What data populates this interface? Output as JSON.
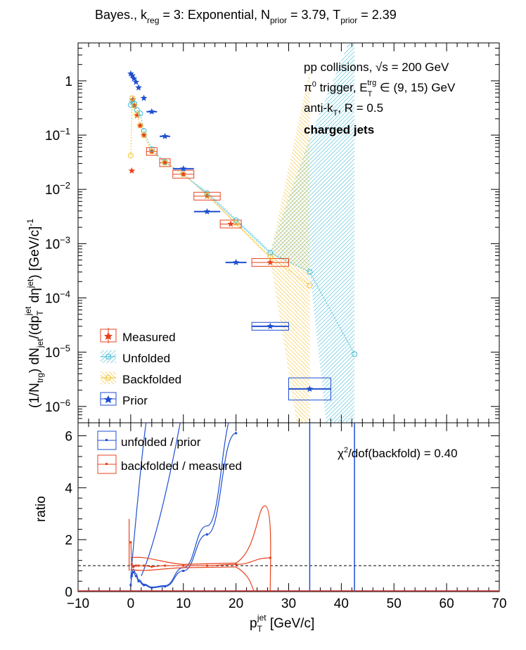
{
  "title_text": {
    "a": "Bayes., k",
    "a_sub": "reg",
    "b": " = 3: Exponential, N",
    "b_sub": "prior",
    "c": " = 3.79, T",
    "c_sub": "prior",
    "d": " = 2.39"
  },
  "annotations": {
    "line1": "pp collisions, √s = 200 GeV",
    "line2_a": "π",
    "line2_sup": "0",
    "line2_b": " trigger, E",
    "line2_sub": "T",
    "line2_sup2": "trg",
    "line2_c": " ∈ (9, 15) GeV",
    "line3_a": "anti-k",
    "line3_sub": "T",
    "line3_b": ", R = 0.5",
    "line4": "charged jets",
    "chi2_a": "χ",
    "chi2_sup": "2",
    "chi2_b": "/dof(backfold) = 0.40"
  },
  "axes": {
    "ylabel_top": "(1/N",
    "ylabel_top_sub": "trg",
    "ylabel_top_b": ") dN",
    "ylabel_top_sub2": "jet",
    "ylabel_top_c": "/(dp",
    "ylabel_top_sub3": "T",
    "ylabel_top_sup3": "jet",
    "ylabel_top_d": " dη",
    "ylabel_top_sup4": "jet",
    "ylabel_top_e": ") [GeV/c]",
    "ylabel_top_sup5": "-1",
    "ylabel_bottom": "ratio",
    "xlabel_a": "p",
    "xlabel_sub": "T",
    "xlabel_sup": "jet",
    "xlabel_b": " [GeV/c]",
    "xticks": [
      "−10",
      "0",
      "10",
      "20",
      "30",
      "40",
      "50",
      "60",
      "70"
    ],
    "yticks_top": [
      {
        "base": "1",
        "exp": ""
      },
      {
        "base": "10",
        "exp": "−1"
      },
      {
        "base": "10",
        "exp": "−2"
      },
      {
        "base": "10",
        "exp": "−3"
      },
      {
        "base": "10",
        "exp": "−4"
      },
      {
        "base": "10",
        "exp": "−5"
      },
      {
        "base": "10",
        "exp": "−6"
      }
    ],
    "yticks_bottom": [
      "0",
      "2",
      "4",
      "6"
    ]
  },
  "legend_top": [
    {
      "label": "Measured",
      "color": "#e8431f"
    },
    {
      "label": "Unfolded",
      "color": "#3fbcd4"
    },
    {
      "label": "Backfolded",
      "color": "#f2c12e"
    },
    {
      "label": "Prior",
      "color": "#1f4fd1"
    }
  ],
  "legend_bottom": [
    {
      "label": "unfolded / prior",
      "color": "#1f4fd1"
    },
    {
      "label": "backfolded / measured",
      "color": "#e8431f"
    }
  ],
  "chart_data": [
    {
      "type": "scatter",
      "title": "Bayes., k_reg = 3: Exponential, N_prior = 3.79, T_prior = 2.39",
      "xlabel": "p_T^jet [GeV/c]",
      "ylabel": "(1/N_trg) dN_jet/(dp_T^jet dη^jet) [GeV/c]^-1",
      "xlim": [
        -10,
        70
      ],
      "ylim": [
        5e-07,
        5
      ],
      "yscale": "log",
      "legend_position": "bottom-left",
      "series": [
        {
          "name": "Measured",
          "color": "#e8431f",
          "x": [
            0.2,
            0.4,
            0.7,
            1.2,
            1.8,
            2.5,
            4,
            6.5,
            10,
            14.5,
            19,
            26.5
          ],
          "xerr": [
            0,
            0,
            0,
            0,
            0,
            0,
            1,
            1,
            2,
            2.5,
            2,
            3.5
          ],
          "y": [
            0.022,
            0.45,
            0.35,
            0.23,
            0.15,
            0.1,
            0.05,
            0.031,
            0.019,
            0.0075,
            0.0023,
            0.00045
          ]
        },
        {
          "name": "Unfolded",
          "color": "#3fbcd4",
          "x": [
            0,
            0.3,
            0.7,
            1.2,
            1.8,
            2.5,
            4,
            6.5,
            10,
            14.5,
            20,
            26.5,
            34,
            42.5
          ],
          "y": [
            0.36,
            0.42,
            0.38,
            0.29,
            0.25,
            0.12,
            0.055,
            0.032,
            0.019,
            0.0085,
            0.0027,
            0.00068,
            0.0003,
            9.2e-06
          ]
        },
        {
          "name": "Backfolded",
          "color": "#f2c12e",
          "x": [
            0,
            0.3,
            0.7,
            1.2,
            1.8,
            2.5,
            4,
            6.5,
            10,
            14.5,
            20,
            26.5,
            34
          ],
          "y": [
            0.042,
            0.48,
            0.35,
            0.24,
            0.15,
            0.1,
            0.05,
            0.031,
            0.019,
            0.0078,
            0.0024,
            0.00057,
            0.00017
          ]
        },
        {
          "name": "Prior",
          "color": "#1f4fd1",
          "x": [
            0,
            0.3,
            0.6,
            1,
            1.5,
            2.5,
            4,
            6.5,
            10,
            14.5,
            20,
            26.5,
            34
          ],
          "xerr": [
            0,
            0,
            0,
            0,
            0,
            0,
            1,
            1,
            2,
            2.5,
            2,
            3.5,
            4
          ],
          "y": [
            1.35,
            1.25,
            1.1,
            0.95,
            0.75,
            0.48,
            0.27,
            0.095,
            0.024,
            0.0039,
            0.00045,
            3e-05,
            2.1e-06
          ]
        }
      ]
    },
    {
      "type": "line",
      "xlabel": "p_T^jet [GeV/c]",
      "ylabel": "ratio",
      "xlim": [
        -10,
        70
      ],
      "ylim": [
        0,
        6.5
      ],
      "reference_line": 1,
      "legend_position": "top-left",
      "series": [
        {
          "name": "unfolded / prior",
          "color": "#1f4fd1",
          "x": [
            0,
            0.2,
            0.5,
            1,
            1.5,
            2.5,
            4,
            6.5,
            10,
            14.5,
            20
          ],
          "y": [
            0.25,
            0.6,
            0.75,
            0.6,
            0.4,
            0.25,
            0.15,
            0.2,
            0.8,
            2.2,
            6.1
          ]
        },
        {
          "name": "backfolded / measured",
          "color": "#e8431f",
          "x": [
            0,
            0.2,
            0.5,
            1,
            1.5,
            2.5,
            4,
            6.5,
            10,
            14.5,
            20,
            26.5
          ],
          "y": [
            1.9,
            1.05,
            0.95,
            1.0,
            1.0,
            1.0,
            0.96,
            1.0,
            1.0,
            1.0,
            1.05,
            1.3
          ]
        }
      ]
    }
  ]
}
